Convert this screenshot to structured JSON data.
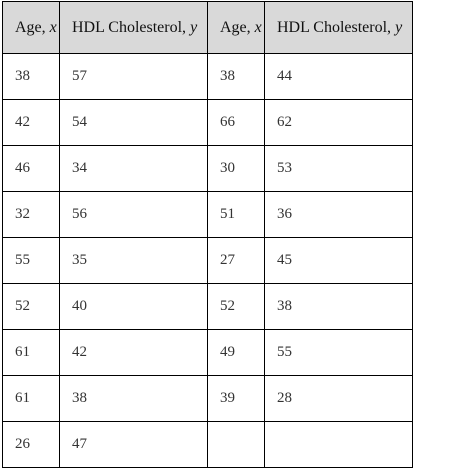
{
  "table": {
    "headers": [
      {
        "label": "Age, ",
        "var": "x"
      },
      {
        "label": "HDL Cholesterol, ",
        "var": "y"
      },
      {
        "label": "Age, ",
        "var": "x"
      },
      {
        "label": "HDL Cholesterol, ",
        "var": "y"
      }
    ],
    "rows": [
      [
        "38",
        "57",
        "38",
        "44"
      ],
      [
        "42",
        "54",
        "66",
        "62"
      ],
      [
        "46",
        "34",
        "30",
        "53"
      ],
      [
        "32",
        "56",
        "51",
        "36"
      ],
      [
        "55",
        "35",
        "27",
        "45"
      ],
      [
        "52",
        "40",
        "52",
        "38"
      ],
      [
        "61",
        "42",
        "49",
        "55"
      ],
      [
        "61",
        "38",
        "39",
        "28"
      ],
      [
        "26",
        "47",
        "",
        ""
      ]
    ]
  },
  "colors": {
    "header_background": "#d9d9d9",
    "border": "#000000",
    "text": "#333333"
  }
}
